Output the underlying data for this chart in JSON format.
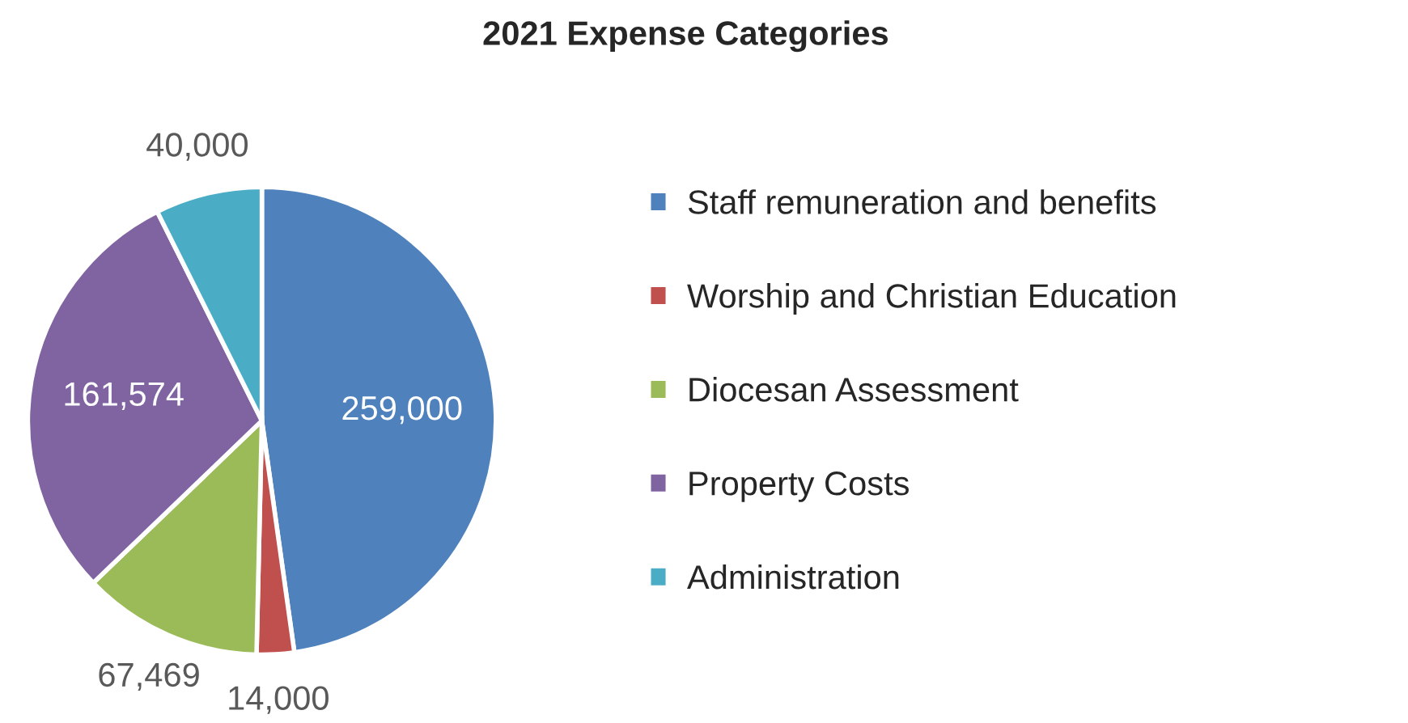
{
  "chart_data": {
    "type": "pie",
    "title": "2021 Expense Categories",
    "categories": [
      "Staff remuneration and benefits",
      "Worship and Christian Education",
      "Diocesan Assessment",
      "Property Costs",
      "Administration"
    ],
    "values": [
      259000,
      14000,
      67469,
      161574,
      40000
    ],
    "colors": [
      "#4f81bd",
      "#c0504d",
      "#9bbb59",
      "#8064a2",
      "#4bacc6"
    ],
    "value_labels": [
      "259,000",
      "14,000",
      "67,469",
      "161,574",
      "40,000"
    ],
    "legend": "right"
  }
}
